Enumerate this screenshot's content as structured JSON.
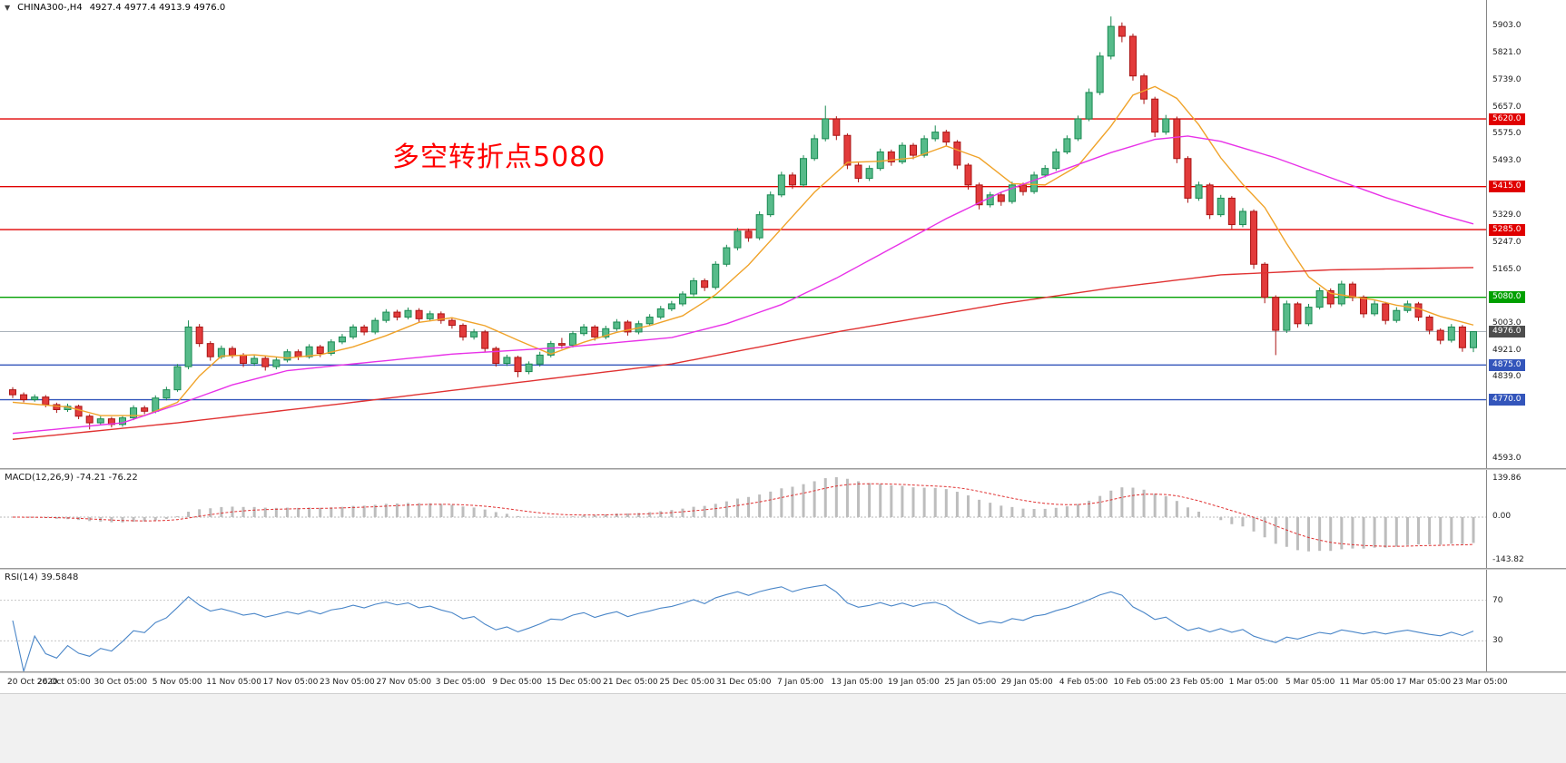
{
  "header": {
    "dropdown": "▼"
  },
  "colors": {
    "background": "#ffffff",
    "annotation": "#ff0000",
    "up_border": "#1a8a52",
    "up_fill": "#57bb8a",
    "down_border": "#aa1414",
    "down_fill": "#e23b3b",
    "ma_fast": "#f0a32a",
    "ma_mid": "#e832e8",
    "ma_slow": "#e03232",
    "rsi_line": "#4a86c8",
    "macd_hist": "#bdbdbd",
    "macd_signal": "#e03232",
    "level_line": {
      "resistance": "#e00000",
      "pivot": "#00a000",
      "support": "#3355bb",
      "current": "#aab2ba"
    },
    "level_badge": {
      "resistance": "#e00000",
      "pivot": "#00a000",
      "support": "#3355bb",
      "current": "#4d4d4d"
    }
  },
  "chart_data": {
    "type": "candlestick",
    "title": "CHINA300-,H4",
    "timeframe": "H4",
    "ohlc_display": "4927.4 4977.4 4913.9 4976.0",
    "annotation": "多空转折点5080",
    "y_range": [
      4593,
      5903
    ],
    "y_ticks": [
      "5903.0",
      "5821.0",
      "5739.0",
      "5657.0",
      "5575.0",
      "5493.0",
      "5329.0",
      "5247.0",
      "5165.0",
      "5003.0",
      "4921.0",
      "4839.0",
      "4593.0"
    ],
    "x_labels": [
      "20 Oct 2020",
      "26 Oct 05:00",
      "30 Oct 05:00",
      "5 Nov 05:00",
      "11 Nov 05:00",
      "17 Nov 05:00",
      "23 Nov 05:00",
      "27 Nov 05:00",
      "3 Dec 05:00",
      "9 Dec 05:00",
      "15 Dec 05:00",
      "21 Dec 05:00",
      "25 Dec 05:00",
      "31 Dec 05:00",
      "7 Jan 05:00",
      "13 Jan 05:00",
      "19 Jan 05:00",
      "25 Jan 05:00",
      "29 Jan 05:00",
      "4 Feb 05:00",
      "10 Feb 05:00",
      "23 Feb 05:00",
      "1 Mar 05:00",
      "5 Mar 05:00",
      "11 Mar 05:00",
      "17 Mar 05:00",
      "23 Mar 05:00"
    ],
    "levels": [
      {
        "price": 5620.0,
        "label": "5620.0",
        "kind": "resistance"
      },
      {
        "price": 5415.0,
        "label": "5415.0",
        "kind": "resistance"
      },
      {
        "price": 5285.0,
        "label": "5285.0",
        "kind": "resistance"
      },
      {
        "price": 5080.0,
        "label": "5080.0",
        "kind": "pivot"
      },
      {
        "price": 4976.0,
        "label": "4976.0",
        "kind": "current"
      },
      {
        "price": 4875.0,
        "label": "4875.0",
        "kind": "support"
      },
      {
        "price": 4770.0,
        "label": "4770.0",
        "kind": "support"
      }
    ],
    "candles": [
      [
        4800,
        4808,
        4775,
        4785
      ],
      [
        4785,
        4792,
        4762,
        4770
      ],
      [
        4770,
        4786,
        4764,
        4778
      ],
      [
        4778,
        4784,
        4747,
        4755
      ],
      [
        4755,
        4761,
        4730,
        4740
      ],
      [
        4740,
        4758,
        4733,
        4750
      ],
      [
        4750,
        4755,
        4711,
        4720
      ],
      [
        4720,
        4726,
        4680,
        4700
      ],
      [
        4700,
        4720,
        4692,
        4712
      ],
      [
        4712,
        4718,
        4686,
        4695
      ],
      [
        4695,
        4723,
        4688,
        4715
      ],
      [
        4715,
        4753,
        4708,
        4745
      ],
      [
        4745,
        4752,
        4726,
        4735
      ],
      [
        4735,
        4783,
        4729,
        4775
      ],
      [
        4775,
        4809,
        4768,
        4800
      ],
      [
        4800,
        4878,
        4794,
        4870
      ],
      [
        4870,
        5010,
        4862,
        4990
      ],
      [
        4990,
        4999,
        4930,
        4940
      ],
      [
        4940,
        4947,
        4888,
        4900
      ],
      [
        4900,
        4934,
        4893,
        4925
      ],
      [
        4925,
        4932,
        4896,
        4905
      ],
      [
        4905,
        4911,
        4869,
        4880
      ],
      [
        4880,
        4904,
        4872,
        4895
      ],
      [
        4895,
        4901,
        4858,
        4870
      ],
      [
        4870,
        4899,
        4862,
        4890
      ],
      [
        4890,
        4923,
        4883,
        4915
      ],
      [
        4915,
        4922,
        4890,
        4900
      ],
      [
        4900,
        4938,
        4894,
        4930
      ],
      [
        4930,
        4936,
        4899,
        4910
      ],
      [
        4910,
        4953,
        4903,
        4945
      ],
      [
        4945,
        4969,
        4938,
        4960
      ],
      [
        4960,
        4998,
        4953,
        4990
      ],
      [
        4990,
        4997,
        4965,
        4975
      ],
      [
        4975,
        5018,
        4968,
        5010
      ],
      [
        5010,
        5044,
        5003,
        5035
      ],
      [
        5035,
        5042,
        5010,
        5020
      ],
      [
        5020,
        5049,
        5013,
        5040
      ],
      [
        5040,
        5047,
        5005,
        5015
      ],
      [
        5015,
        5039,
        5008,
        5030
      ],
      [
        5030,
        5037,
        5000,
        5010
      ],
      [
        5010,
        5016,
        4985,
        4995
      ],
      [
        4995,
        5001,
        4949,
        4960
      ],
      [
        4960,
        4984,
        4952,
        4975
      ],
      [
        4975,
        4981,
        4914,
        4925
      ],
      [
        4925,
        4931,
        4870,
        4880
      ],
      [
        4880,
        4906,
        4872,
        4898
      ],
      [
        4898,
        4903,
        4838,
        4855
      ],
      [
        4855,
        4886,
        4847,
        4878
      ],
      [
        4878,
        4915,
        4870,
        4905
      ],
      [
        4905,
        4948,
        4898,
        4940
      ],
      [
        4940,
        4957,
        4924,
        4935
      ],
      [
        4935,
        4978,
        4928,
        4970
      ],
      [
        4970,
        4999,
        4963,
        4990
      ],
      [
        4990,
        4996,
        4949,
        4960
      ],
      [
        4960,
        4994,
        4953,
        4985
      ],
      [
        4985,
        5014,
        4978,
        5005
      ],
      [
        5005,
        5011,
        4964,
        4975
      ],
      [
        4975,
        5009,
        4968,
        5000
      ],
      [
        5000,
        5029,
        4993,
        5020
      ],
      [
        5020,
        5054,
        5013,
        5045
      ],
      [
        5045,
        5069,
        5038,
        5060
      ],
      [
        5060,
        5098,
        5053,
        5090
      ],
      [
        5090,
        5139,
        5083,
        5130
      ],
      [
        5130,
        5137,
        5099,
        5110
      ],
      [
        5110,
        5189,
        5103,
        5180
      ],
      [
        5180,
        5239,
        5173,
        5230
      ],
      [
        5230,
        5290,
        5222,
        5280
      ],
      [
        5280,
        5288,
        5248,
        5260
      ],
      [
        5260,
        5340,
        5253,
        5330
      ],
      [
        5330,
        5400,
        5323,
        5390
      ],
      [
        5390,
        5460,
        5383,
        5450
      ],
      [
        5450,
        5458,
        5408,
        5420
      ],
      [
        5420,
        5510,
        5413,
        5500
      ],
      [
        5500,
        5572,
        5493,
        5560
      ],
      [
        5560,
        5660,
        5552,
        5620
      ],
      [
        5620,
        5628,
        5556,
        5570
      ],
      [
        5570,
        5576,
        5468,
        5480
      ],
      [
        5480,
        5487,
        5428,
        5440
      ],
      [
        5440,
        5479,
        5432,
        5470
      ],
      [
        5470,
        5530,
        5463,
        5520
      ],
      [
        5520,
        5527,
        5478,
        5490
      ],
      [
        5490,
        5549,
        5483,
        5540
      ],
      [
        5540,
        5547,
        5498,
        5510
      ],
      [
        5510,
        5570,
        5503,
        5560
      ],
      [
        5560,
        5600,
        5552,
        5580
      ],
      [
        5580,
        5587,
        5538,
        5550
      ],
      [
        5550,
        5556,
        5468,
        5480
      ],
      [
        5480,
        5486,
        5406,
        5420
      ],
      [
        5420,
        5427,
        5346,
        5360
      ],
      [
        5360,
        5399,
        5352,
        5390
      ],
      [
        5390,
        5397,
        5357,
        5370
      ],
      [
        5370,
        5430,
        5363,
        5420
      ],
      [
        5420,
        5427,
        5388,
        5400
      ],
      [
        5400,
        5460,
        5393,
        5450
      ],
      [
        5450,
        5480,
        5443,
        5470
      ],
      [
        5470,
        5530,
        5463,
        5520
      ],
      [
        5520,
        5570,
        5513,
        5560
      ],
      [
        5560,
        5630,
        5553,
        5620
      ],
      [
        5620,
        5712,
        5613,
        5700
      ],
      [
        5700,
        5822,
        5692,
        5810
      ],
      [
        5810,
        5930,
        5800,
        5900
      ],
      [
        5900,
        5912,
        5852,
        5870
      ],
      [
        5870,
        5878,
        5736,
        5750
      ],
      [
        5750,
        5757,
        5665,
        5680
      ],
      [
        5680,
        5687,
        5565,
        5580
      ],
      [
        5580,
        5632,
        5572,
        5620
      ],
      [
        5620,
        5627,
        5486,
        5500
      ],
      [
        5500,
        5507,
        5366,
        5380
      ],
      [
        5380,
        5430,
        5372,
        5420
      ],
      [
        5420,
        5426,
        5317,
        5330
      ],
      [
        5330,
        5390,
        5323,
        5380
      ],
      [
        5380,
        5386,
        5287,
        5300
      ],
      [
        5300,
        5350,
        5292,
        5340
      ],
      [
        5340,
        5346,
        5166,
        5180
      ],
      [
        5180,
        5186,
        5062,
        5080
      ],
      [
        5080,
        5086,
        4905,
        4980
      ],
      [
        4980,
        5070,
        4972,
        5060
      ],
      [
        5060,
        5066,
        4988,
        5000
      ],
      [
        5000,
        5060,
        4993,
        5050
      ],
      [
        5050,
        5110,
        5043,
        5100
      ],
      [
        5100,
        5107,
        5048,
        5060
      ],
      [
        5060,
        5130,
        5053,
        5120
      ],
      [
        5120,
        5127,
        5068,
        5080
      ],
      [
        5080,
        5086,
        5018,
        5030
      ],
      [
        5030,
        5070,
        5023,
        5060
      ],
      [
        5060,
        5066,
        4998,
        5010
      ],
      [
        5010,
        5050,
        5003,
        5040
      ],
      [
        5040,
        5070,
        5033,
        5060
      ],
      [
        5060,
        5066,
        5008,
        5020
      ],
      [
        5020,
        5026,
        4968,
        4980
      ],
      [
        4980,
        4986,
        4938,
        4950
      ],
      [
        4950,
        4999,
        4943,
        4990
      ],
      [
        4990,
        4996,
        4915,
        4927.4
      ],
      [
        4927.4,
        4977.4,
        4913.9,
        4976.0
      ]
    ],
    "moving_averages": [
      {
        "name": "fast",
        "color_key": "ma_fast",
        "points": [
          [
            0,
            4762
          ],
          [
            5,
            4748
          ],
          [
            8,
            4722
          ],
          [
            12,
            4722
          ],
          [
            15,
            4762
          ],
          [
            17,
            4842
          ],
          [
            19,
            4902
          ],
          [
            22,
            4906
          ],
          [
            25,
            4896
          ],
          [
            28,
            4906
          ],
          [
            31,
            4930
          ],
          [
            34,
            4964
          ],
          [
            37,
            5004
          ],
          [
            40,
            5018
          ],
          [
            43,
            4994
          ],
          [
            46,
            4950
          ],
          [
            49,
            4908
          ],
          [
            52,
            4944
          ],
          [
            55,
            4974
          ],
          [
            58,
            4994
          ],
          [
            61,
            5024
          ],
          [
            64,
            5088
          ],
          [
            67,
            5178
          ],
          [
            70,
            5288
          ],
          [
            73,
            5398
          ],
          [
            76,
            5488
          ],
          [
            79,
            5492
          ],
          [
            82,
            5502
          ],
          [
            85,
            5538
          ],
          [
            88,
            5502
          ],
          [
            91,
            5424
          ],
          [
            94,
            5420
          ],
          [
            97,
            5478
          ],
          [
            100,
            5598
          ],
          [
            102,
            5692
          ],
          [
            104,
            5718
          ],
          [
            106,
            5682
          ],
          [
            108,
            5602
          ],
          [
            110,
            5502
          ],
          [
            112,
            5422
          ],
          [
            114,
            5352
          ],
          [
            116,
            5242
          ],
          [
            118,
            5142
          ],
          [
            120,
            5092
          ],
          [
            122,
            5082
          ],
          [
            124,
            5072
          ],
          [
            126,
            5056
          ],
          [
            128,
            5046
          ],
          [
            130,
            5022
          ],
          [
            133,
            4996
          ]
        ]
      },
      {
        "name": "medium",
        "color_key": "ma_mid",
        "points": [
          [
            0,
            4668
          ],
          [
            10,
            4700
          ],
          [
            15,
            4755
          ],
          [
            20,
            4815
          ],
          [
            25,
            4858
          ],
          [
            30,
            4875
          ],
          [
            40,
            4908
          ],
          [
            50,
            4928
          ],
          [
            60,
            4958
          ],
          [
            65,
            5000
          ],
          [
            70,
            5058
          ],
          [
            75,
            5138
          ],
          [
            80,
            5228
          ],
          [
            85,
            5318
          ],
          [
            90,
            5398
          ],
          [
            95,
            5458
          ],
          [
            100,
            5518
          ],
          [
            104,
            5558
          ],
          [
            107,
            5568
          ],
          [
            110,
            5552
          ],
          [
            115,
            5502
          ],
          [
            120,
            5442
          ],
          [
            125,
            5382
          ],
          [
            130,
            5330
          ],
          [
            133,
            5302
          ]
        ]
      },
      {
        "name": "slow",
        "color_key": "ma_slow",
        "points": [
          [
            0,
            4650
          ],
          [
            15,
            4700
          ],
          [
            30,
            4758
          ],
          [
            45,
            4818
          ],
          [
            60,
            4878
          ],
          [
            75,
            4975
          ],
          [
            90,
            5060
          ],
          [
            100,
            5108
          ],
          [
            110,
            5148
          ],
          [
            120,
            5163
          ],
          [
            133,
            5170
          ]
        ]
      }
    ],
    "panels": {
      "macd": {
        "label": "MACD(12,26,9) -74.21 -76.22",
        "fast": 12,
        "slow": 26,
        "signal_period": 9,
        "axis_labels": [
          "139.86",
          "0.00",
          "-143.82"
        ]
      },
      "rsi": {
        "label": "RSI(14) 39.5848",
        "period": 14,
        "current": "39.5848",
        "guides": [
          "70",
          "30"
        ]
      }
    }
  }
}
